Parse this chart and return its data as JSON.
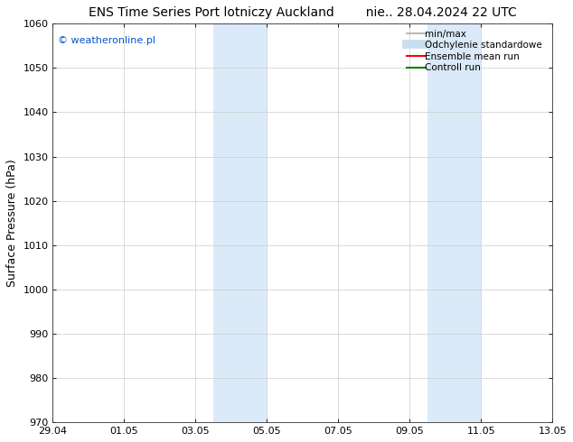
{
  "title_left": "ENS Time Series Port lotniczy Auckland",
  "title_right": "nie.. 28.04.2024 22 UTC",
  "ylabel": "Surface Pressure (hPa)",
  "ylim": [
    970,
    1060
  ],
  "yticks": [
    970,
    980,
    990,
    1000,
    1010,
    1020,
    1030,
    1040,
    1050,
    1060
  ],
  "x_numeric_start": 0,
  "x_numeric_end": 14,
  "xtick_positions": [
    0,
    2,
    4,
    6,
    8,
    10,
    12,
    14
  ],
  "xtick_labels": [
    "29.04",
    "01.05",
    "03.05",
    "05.05",
    "07.05",
    "09.05",
    "11.05",
    "13.05"
  ],
  "shaded_regions": [
    {
      "xmin": 4.5,
      "xmax": 6.0,
      "color": "#daeaf8"
    },
    {
      "xmin": 10.5,
      "xmax": 12.0,
      "color": "#daeaf8"
    }
  ],
  "watermark_text": "© weatheronline.pl",
  "watermark_color": "#0055cc",
  "legend_items": [
    {
      "label": "min/max",
      "color": "#aaaaaa",
      "lw": 1.2
    },
    {
      "label": "Odchylenie standardowe",
      "color": "#c8dff0",
      "lw": 7
    },
    {
      "label": "Ensemble mean run",
      "color": "red",
      "lw": 1.5
    },
    {
      "label": "Controll run",
      "color": "green",
      "lw": 1.5
    }
  ],
  "bg_color": "#ffffff",
  "plot_bg_color": "#ffffff",
  "grid_color": "#cccccc",
  "title_fontsize": 10,
  "tick_fontsize": 8,
  "ylabel_fontsize": 9,
  "legend_fontsize": 7.5
}
